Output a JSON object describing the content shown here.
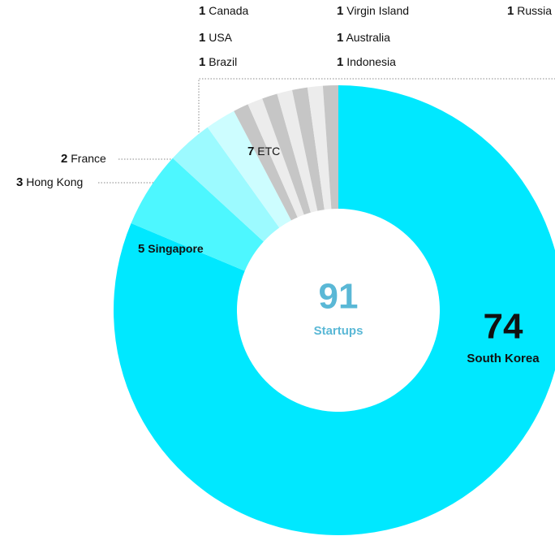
{
  "chart_data": {
    "type": "donut",
    "total": 91,
    "total_label": "Startups",
    "categories": [
      "South Korea",
      "Singapore",
      "Hong Kong",
      "France",
      "Canada",
      "USA",
      "Brazil",
      "Virgin Island",
      "Australia",
      "Indonesia",
      "Russia"
    ],
    "values": [
      74,
      5,
      3,
      2,
      1,
      1,
      1,
      1,
      1,
      1,
      1
    ],
    "colors": [
      "#00e8ff",
      "#4df7ff",
      "#9cfaff",
      "#cdfdff",
      "#c6c6c6",
      "#ececec",
      "#c6c6c6",
      "#ececec",
      "#c6c6c6",
      "#ececec",
      "#c6c6c6"
    ],
    "group": {
      "name": "ETC",
      "value": 7
    }
  }
}
